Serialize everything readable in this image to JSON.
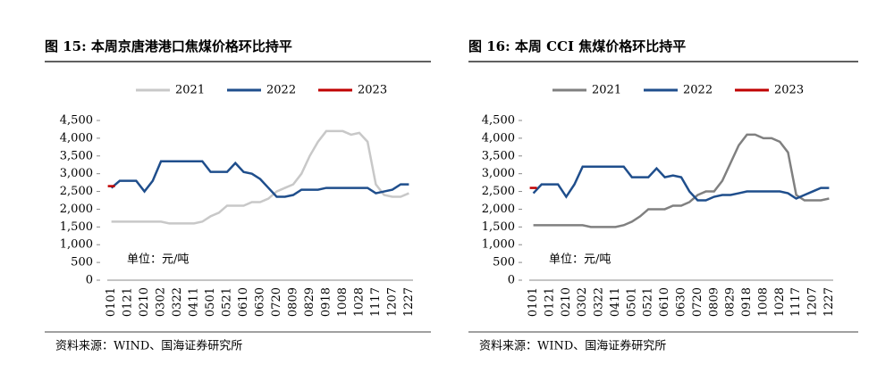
{
  "chart_data": [
    {
      "type": "line",
      "title": "图 15: 本周京唐港港口焦煤价格环比持平",
      "annotation": "单位：元/吨",
      "source": "资料来源：WIND、国海证券研究所",
      "categories": [
        "0101",
        null,
        "0121",
        null,
        "0210",
        null,
        "0302",
        null,
        "0322",
        null,
        "0411",
        null,
        "0501",
        null,
        "0521",
        null,
        "0610",
        null,
        "0630",
        null,
        "0720",
        null,
        "0809",
        null,
        "0829",
        null,
        "0918",
        null,
        "1008",
        null,
        "1028",
        null,
        "1117",
        null,
        "1207",
        null,
        "1227"
      ],
      "ylim": [
        0,
        4500
      ],
      "yticks": [
        0,
        500,
        {
          "value": 1000,
          "label": "1,000"
        },
        {
          "value": 1500,
          "label": "1,500"
        },
        {
          "value": 2000,
          "label": "2,000"
        },
        {
          "value": 2500,
          "label": "2,500"
        },
        {
          "value": 3000,
          "label": "3,000"
        },
        {
          "value": 3500,
          "label": "3,500"
        },
        {
          "value": 4000,
          "label": "4,000"
        },
        {
          "value": 4500,
          "label": "4,500"
        }
      ],
      "series": [
        {
          "name": "2021",
          "color": "#c8c8c8",
          "values": [
            1650,
            1650,
            1650,
            1650,
            1650,
            1650,
            1650,
            1600,
            1600,
            1600,
            1600,
            1650,
            1800,
            1900,
            2100,
            2100,
            2100,
            2200,
            2200,
            2300,
            2500,
            2600,
            2700,
            3000,
            3500,
            3900,
            4200,
            4200,
            4200,
            4100,
            4150,
            3900,
            2700,
            2400,
            2350,
            2350,
            2450
          ]
        },
        {
          "name": "2022",
          "color": "#1f4e8c",
          "values": [
            2600,
            2800,
            2800,
            2800,
            2500,
            2800,
            3350,
            3350,
            3350,
            3350,
            3350,
            3350,
            3050,
            3050,
            3050,
            3300,
            3050,
            3000,
            2850,
            2600,
            2350,
            2350,
            2400,
            2550,
            2550,
            2550,
            2600,
            2600,
            2600,
            2600,
            2600,
            2600,
            2450,
            2500,
            2550,
            2700,
            2700
          ]
        },
        {
          "name": "2023",
          "color": "#c00000",
          "values": [
            2650,
            null,
            null,
            null,
            null,
            null,
            null,
            null,
            null,
            null,
            null,
            null,
            null,
            null,
            null,
            null,
            null,
            null,
            null,
            null,
            null,
            null,
            null,
            null,
            null,
            null,
            null,
            null,
            null,
            null,
            null,
            null,
            null,
            null,
            null,
            null,
            null
          ]
        }
      ]
    },
    {
      "type": "line",
      "title": "图 16: 本周 CCI 焦煤价格环比持平",
      "annotation": "单位：元/吨",
      "source": "资料来源：WIND、国海证券研究所",
      "categories": [
        "0101",
        null,
        "0121",
        null,
        "0210",
        null,
        "0302",
        null,
        "0322",
        null,
        "0411",
        null,
        "0501",
        null,
        "0521",
        null,
        "0610",
        null,
        "0630",
        null,
        "0720",
        null,
        "0809",
        null,
        "0829",
        null,
        "0918",
        null,
        "1008",
        null,
        "1028",
        null,
        "1117",
        null,
        "1207",
        null,
        "1227"
      ],
      "ylim": [
        0,
        4500
      ],
      "yticks": [
        0,
        500,
        {
          "value": 1000,
          "label": "1,000"
        },
        {
          "value": 1500,
          "label": "1,500"
        },
        {
          "value": 2000,
          "label": "2,000"
        },
        {
          "value": 2500,
          "label": "2,500"
        },
        {
          "value": 3000,
          "label": "3,000"
        },
        {
          "value": 3500,
          "label": "3,500"
        },
        {
          "value": 4000,
          "label": "4,000"
        },
        {
          "value": 4500,
          "label": "4,500"
        }
      ],
      "series": [
        {
          "name": "2021",
          "color": "#808080",
          "values": [
            1550,
            1550,
            1550,
            1550,
            1550,
            1550,
            1550,
            1500,
            1500,
            1500,
            1500,
            1550,
            1650,
            1800,
            2000,
            2000,
            2000,
            2100,
            2100,
            2200,
            2400,
            2500,
            2500,
            2800,
            3300,
            3800,
            4100,
            4100,
            4000,
            4000,
            3900,
            3600,
            2400,
            2250,
            2250,
            2250,
            2300
          ]
        },
        {
          "name": "2022",
          "color": "#1f4e8c",
          "values": [
            2450,
            2700,
            2700,
            2700,
            2350,
            2700,
            3200,
            3200,
            3200,
            3200,
            3200,
            3200,
            2900,
            2900,
            2900,
            3150,
            2900,
            2950,
            2900,
            2500,
            2250,
            2250,
            2350,
            2400,
            2400,
            2450,
            2500,
            2500,
            2500,
            2500,
            2500,
            2450,
            2300,
            2400,
            2500,
            2600,
            2600
          ]
        },
        {
          "name": "2023",
          "color": "#c00000",
          "values": [
            2600,
            null,
            null,
            null,
            null,
            null,
            null,
            null,
            null,
            null,
            null,
            null,
            null,
            null,
            null,
            null,
            null,
            null,
            null,
            null,
            null,
            null,
            null,
            null,
            null,
            null,
            null,
            null,
            null,
            null,
            null,
            null,
            null,
            null,
            null,
            null,
            null
          ]
        }
      ]
    }
  ]
}
